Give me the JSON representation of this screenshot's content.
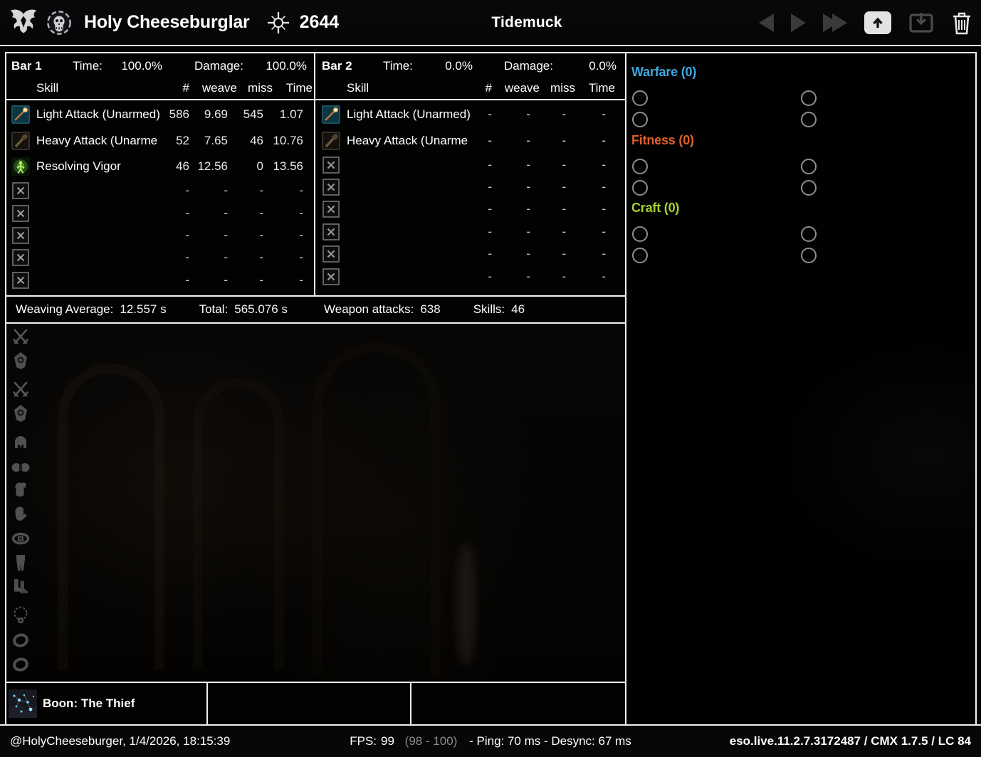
{
  "topbar": {
    "character_name": "Holy Cheeseburglar",
    "champion_points": "2644",
    "zone_title": "Tidemuck",
    "icons": [
      "class-emblem-icon",
      "skull-portrait-icon",
      "champion-star-icon",
      "nav-back-icon",
      "nav-forward-icon",
      "nav-fast-forward-icon",
      "upload-icon",
      "download-icon",
      "trash-icon"
    ]
  },
  "bars": [
    {
      "name": "Bar 1",
      "time_label": "Time:",
      "time_value": "100.0%",
      "damage_label": "Damage:",
      "damage_value": "100.0%",
      "columns": {
        "skill": "Skill",
        "count": "#",
        "weave": "weave",
        "miss": "miss",
        "time": "Time"
      },
      "rows": [
        {
          "icon": "light-attack",
          "skill": "Light Attack (Unarmed)",
          "count": "586",
          "weave": "9.69",
          "miss": "545",
          "time": "1.07"
        },
        {
          "icon": "heavy-attack",
          "skill": "Heavy Attack (Unarme",
          "count": "52",
          "weave": "7.65",
          "miss": "46",
          "time": "10.76"
        },
        {
          "icon": "resolving-vigor",
          "skill": "Resolving Vigor",
          "count": "46",
          "weave": "12.56",
          "miss": "0",
          "time": "13.56"
        },
        {
          "icon": "empty",
          "skill": "",
          "count": "-",
          "weave": "-",
          "miss": "-",
          "time": "-"
        },
        {
          "icon": "empty",
          "skill": "",
          "count": "-",
          "weave": "-",
          "miss": "-",
          "time": "-"
        },
        {
          "icon": "empty",
          "skill": "",
          "count": "-",
          "weave": "-",
          "miss": "-",
          "time": "-"
        },
        {
          "icon": "empty",
          "skill": "",
          "count": "-",
          "weave": "-",
          "miss": "-",
          "time": "-"
        },
        {
          "icon": "empty",
          "skill": "",
          "count": "-",
          "weave": "-",
          "miss": "-",
          "time": "-"
        }
      ]
    },
    {
      "name": "Bar 2",
      "time_label": "Time:",
      "time_value": "0.0%",
      "damage_label": "Damage:",
      "damage_value": "0.0%",
      "columns": {
        "skill": "Skill",
        "count": "#",
        "weave": "weave",
        "miss": "miss",
        "time": "Time"
      },
      "rows": [
        {
          "icon": "light-attack",
          "skill": "Light Attack (Unarmed)",
          "count": "-",
          "weave": "-",
          "miss": "-",
          "time": "-"
        },
        {
          "icon": "heavy-attack",
          "skill": "Heavy Attack (Unarme",
          "count": "-",
          "weave": "-",
          "miss": "-",
          "time": "-"
        },
        {
          "icon": "empty",
          "skill": "",
          "count": "-",
          "weave": "-",
          "miss": "-",
          "time": "-"
        },
        {
          "icon": "empty",
          "skill": "",
          "count": "-",
          "weave": "-",
          "miss": "-",
          "time": "-"
        },
        {
          "icon": "empty",
          "skill": "",
          "count": "-",
          "weave": "-",
          "miss": "-",
          "time": "-"
        },
        {
          "icon": "empty",
          "skill": "",
          "count": "-",
          "weave": "-",
          "miss": "-",
          "time": "-"
        },
        {
          "icon": "empty",
          "skill": "",
          "count": "-",
          "weave": "-",
          "miss": "-",
          "time": "-"
        },
        {
          "icon": "empty",
          "skill": "",
          "count": "-",
          "weave": "-",
          "miss": "-",
          "time": "-"
        }
      ]
    }
  ],
  "totals": [
    {
      "pairs": [
        {
          "label": "Weaving Average:",
          "value": "12.557 s"
        },
        {
          "label": "Total:",
          "value": "565.076 s"
        }
      ]
    },
    {
      "pairs": [
        {
          "label": "Weapon attacks:",
          "value": "638"
        },
        {
          "label": "Skills:",
          "value": "46"
        }
      ]
    }
  ],
  "champion": {
    "sections": [
      {
        "id": "warfare",
        "label": "Warfare (0)",
        "color": "#3fa9e0"
      },
      {
        "id": "fitness",
        "label": "Fitness (0)",
        "color": "#e0602c"
      },
      {
        "id": "craft",
        "label": "Craft (0)",
        "color": "#a6d12f"
      }
    ],
    "slots_per_section": 4
  },
  "equipment_slots": [
    {
      "name": "main-hand-weapons",
      "icon": "swords"
    },
    {
      "name": "off-hand",
      "icon": "shield"
    },
    {
      "name": "backup-weapons",
      "icon": "swords"
    },
    {
      "name": "backup-off-hand",
      "icon": "shield"
    },
    {
      "name": "head",
      "icon": "helmet"
    },
    {
      "name": "shoulders",
      "icon": "shoulders"
    },
    {
      "name": "chest",
      "icon": "chest"
    },
    {
      "name": "hands",
      "icon": "gloves"
    },
    {
      "name": "waist",
      "icon": "belt"
    },
    {
      "name": "legs",
      "icon": "legs"
    },
    {
      "name": "feet",
      "icon": "boots"
    },
    {
      "name": "neck",
      "icon": "necklace"
    },
    {
      "name": "ring-1",
      "icon": "ring"
    },
    {
      "name": "ring-2",
      "icon": "ring"
    }
  ],
  "boon": {
    "label": "Boon: The Thief"
  },
  "statusbar": {
    "account_line": "@HolyCheeseburger, 1/4/2026, 18:15:39",
    "fps_label": "FPS:",
    "fps_value": "99",
    "fps_range": "(98 - 100)",
    "latency": "- Ping: 70 ms - Desync: 67 ms",
    "build_info": "eso.live.11.2.7.3172487 / CMX 1.7.5 / LC 84"
  }
}
